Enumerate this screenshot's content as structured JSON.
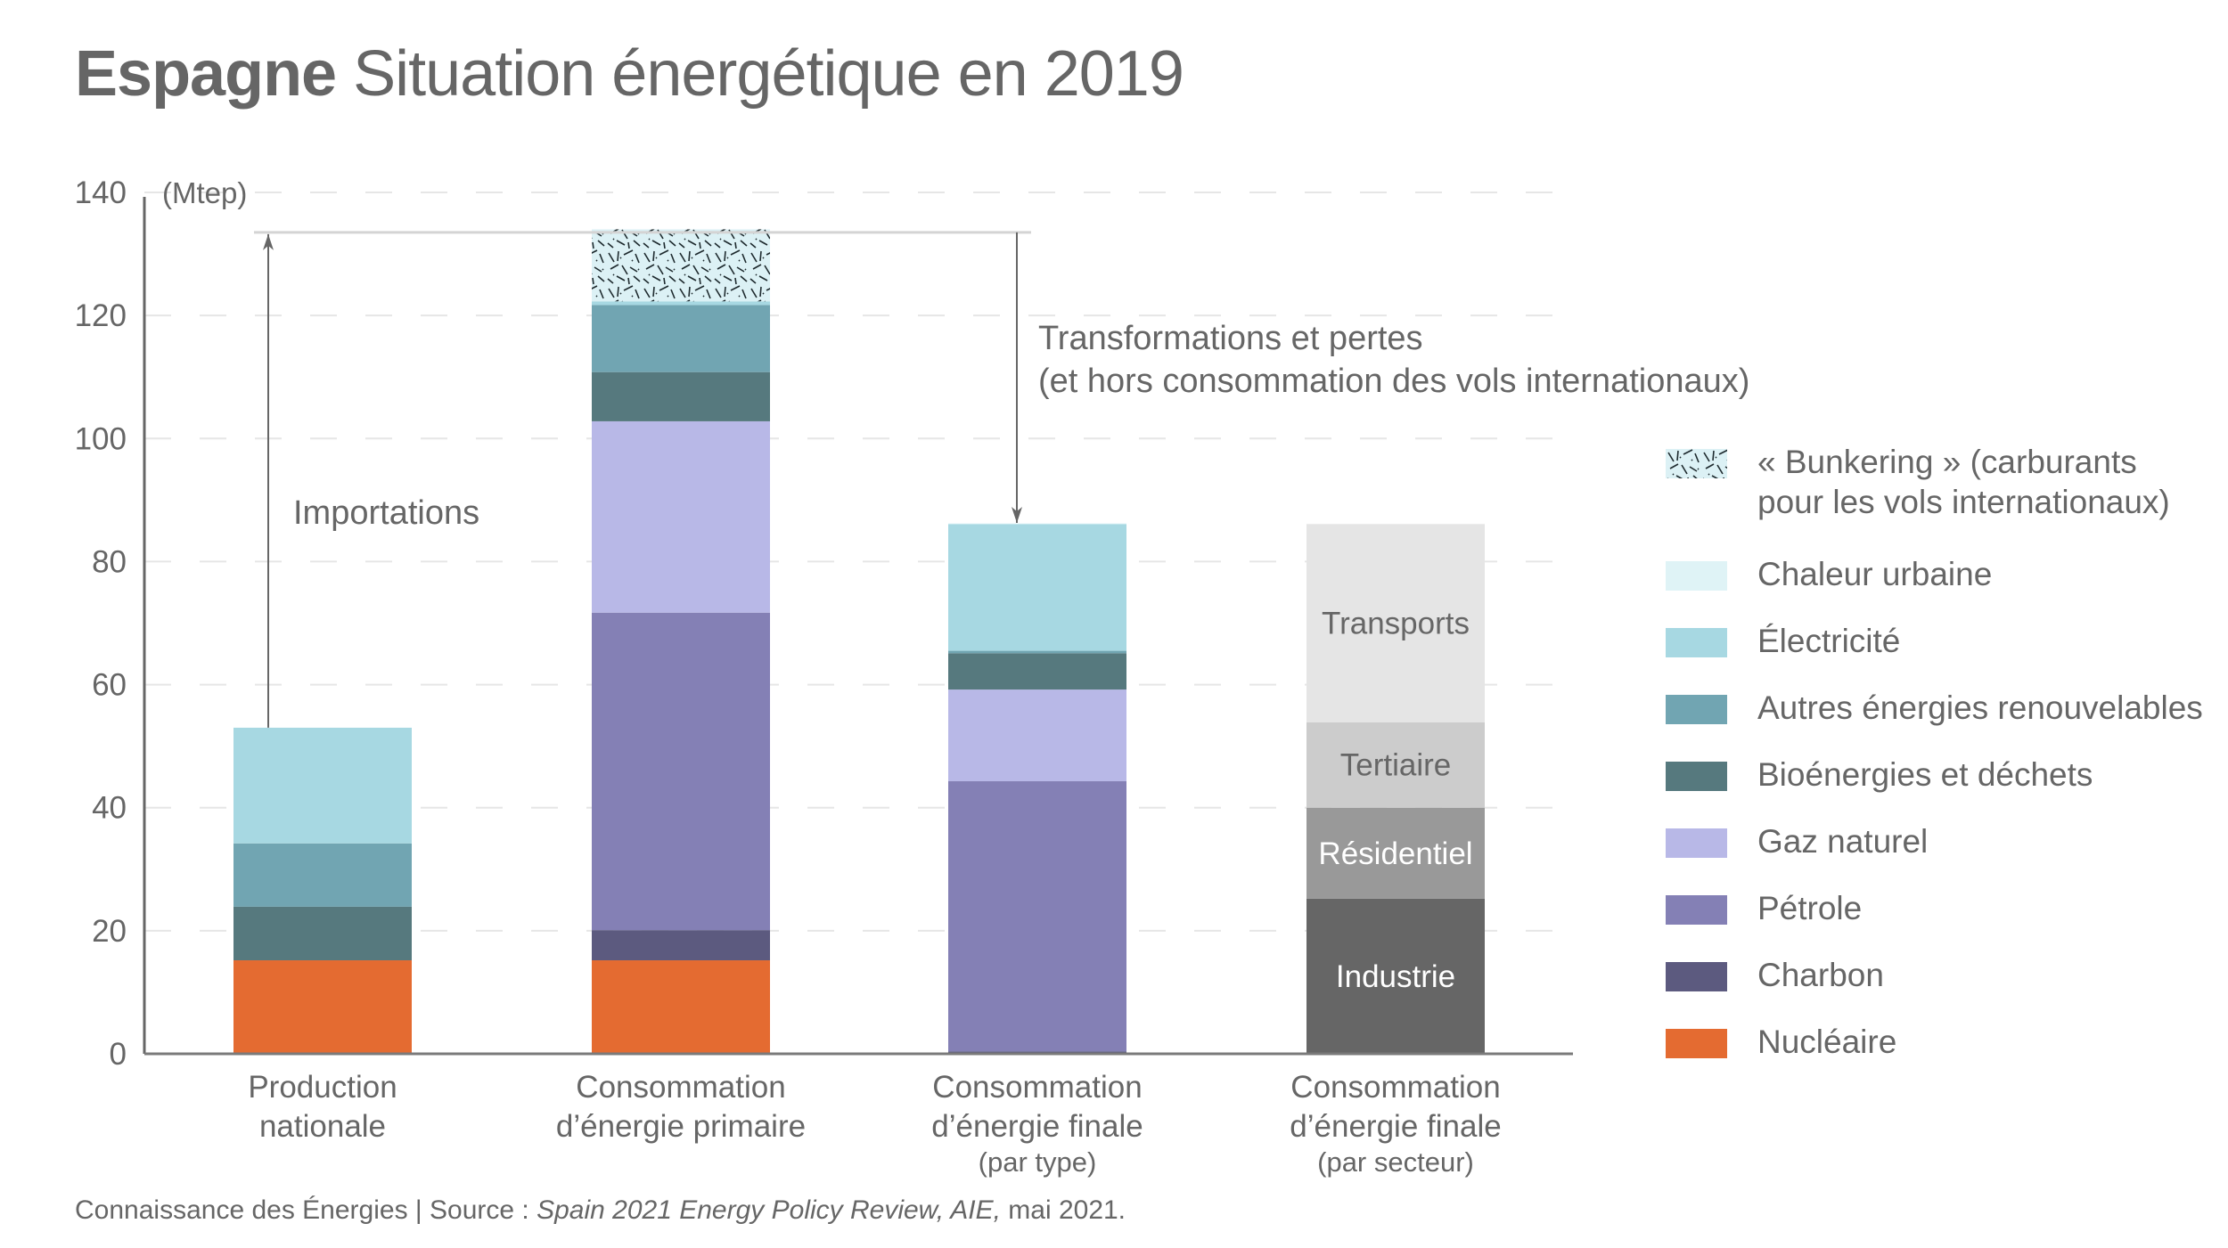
{
  "title": {
    "bold": "Espagne",
    "rest": " Situation énergétique en 2019"
  },
  "colors": {
    "Bunkering": "#dcf1f5",
    "Chaleur urbaine": "#dff3f6",
    "Électricité": "#a7d8e2",
    "Autres énergies renouvelables": "#71a5b2",
    "Bioénergies et déchets": "#56797e",
    "Gaz naturel": "#b8b8e7",
    "Pétrole": "#8480b5",
    "Charbon": "#5c5a7f",
    "Nucléaire": "#e46b31",
    "Transports": "#e5e5e5",
    "Tertiaire": "#cccccc",
    "Résidentiel": "#999999",
    "Industrie": "#666666"
  },
  "chart_data": {
    "type": "bar",
    "stacked": true,
    "title": "Espagne Situation énergétique en 2019",
    "ylabel": "(Mtep)",
    "xlabel": "",
    "ylim": [
      0,
      140
    ],
    "yticks": [
      0,
      20,
      40,
      60,
      80,
      100,
      120,
      140
    ],
    "grid": true,
    "legend_position": "right",
    "categories": [
      {
        "lines": [
          "Production",
          "nationale"
        ],
        "sub": ""
      },
      {
        "lines": [
          "Consommation",
          "d’énergie primaire"
        ],
        "sub": ""
      },
      {
        "lines": [
          "Consommation",
          "d’énergie finale"
        ],
        "sub": "(par type)"
      },
      {
        "lines": [
          "Consommation",
          "d’énergie finale"
        ],
        "sub": "(par secteur)"
      }
    ],
    "bars": [
      {
        "name": "Production nationale",
        "segments": [
          {
            "series": "Nucléaire",
            "value": 15.2
          },
          {
            "series": "Bioénergies et déchets",
            "value": 8.7
          },
          {
            "series": "Autres énergies renouvelables",
            "value": 10.3
          },
          {
            "series": "Électricité",
            "value": 18.8
          }
        ]
      },
      {
        "name": "Consommation d’énergie primaire",
        "segments": [
          {
            "series": "Nucléaire",
            "value": 15.2
          },
          {
            "series": "Charbon",
            "value": 4.9
          },
          {
            "series": "Pétrole",
            "value": 51.6
          },
          {
            "series": "Gaz naturel",
            "value": 31.1
          },
          {
            "series": "Bioénergies et déchets",
            "value": 8.0
          },
          {
            "series": "Autres énergies renouvelables",
            "value": 10.9
          },
          {
            "series": "Électricité",
            "value": 0.6
          },
          {
            "series": "Bunkering",
            "value": 11.7,
            "pattern": true
          }
        ]
      },
      {
        "name": "Consommation d’énergie finale (par type)",
        "segments": [
          {
            "series": "Charbon",
            "value": 0.4
          },
          {
            "series": "Pétrole",
            "value": 43.9
          },
          {
            "series": "Gaz naturel",
            "value": 14.9
          },
          {
            "series": "Bioénergies et déchets",
            "value": 5.9
          },
          {
            "series": "Autres énergies renouvelables",
            "value": 0.4
          },
          {
            "series": "Électricité",
            "value": 20.6
          },
          {
            "series": "Chaleur urbaine",
            "value": 0.1
          }
        ]
      },
      {
        "name": "Consommation d’énergie finale (par secteur)",
        "segments": [
          {
            "series": "Industrie",
            "value": 25.2,
            "label": "Industrie",
            "label_color": "#ffffff"
          },
          {
            "series": "Résidentiel",
            "value": 14.8,
            "label": "Résidentiel",
            "label_color": "#ffffff"
          },
          {
            "series": "Tertiaire",
            "value": 13.9,
            "label": "Tertiaire",
            "label_color": "#666666"
          },
          {
            "series": "Transports",
            "value": 32.2,
            "label": "Transports",
            "label_color": "#666666"
          }
        ]
      }
    ],
    "annotations": [
      {
        "name": "importations",
        "text": [
          "Importations"
        ],
        "from": 53.0,
        "to": 133.5
      },
      {
        "name": "transformations",
        "text": [
          "Transformations et pertes",
          "(et hors consommation des vols internationaux)"
        ],
        "from": 133.5,
        "to": 86.0
      }
    ],
    "bracket_level": 133.5
  },
  "legend": [
    {
      "label": "« Bunkering » (carburants pour les vols internationaux)",
      "series": "Bunkering",
      "pattern": true
    },
    {
      "label": "Chaleur urbaine",
      "series": "Chaleur urbaine"
    },
    {
      "label": "Électricité",
      "series": "Électricité"
    },
    {
      "label": "Autres énergies renouvelables",
      "series": "Autres énergies renouvelables"
    },
    {
      "label": "Bioénergies et déchets",
      "series": "Bioénergies et déchets"
    },
    {
      "label": "Gaz naturel",
      "series": "Gaz naturel"
    },
    {
      "label": "Pétrole",
      "series": "Pétrole"
    },
    {
      "label": "Charbon",
      "series": "Charbon"
    },
    {
      "label": "Nucléaire",
      "series": "Nucléaire"
    }
  ],
  "footer": {
    "prefix": "Connaissance des Énergies | Source : ",
    "italic": "Spain 2021 Energy Policy Review, AIE,",
    "suffix": " mai 2021."
  }
}
